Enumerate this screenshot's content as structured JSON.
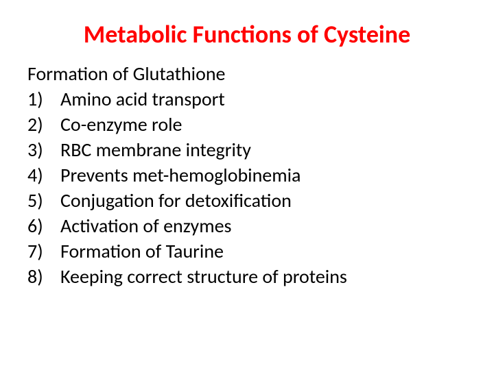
{
  "title": {
    "text": "Metabolic Functions of Cysteine",
    "color": "#ff0000",
    "fontsize": 36
  },
  "subtitle": {
    "text": "Formation of Glutathione",
    "color": "#000000",
    "fontsize": 28
  },
  "list": {
    "fontsize": 28,
    "color": "#000000",
    "items": [
      {
        "num": "1)",
        "text": "Amino acid transport"
      },
      {
        "num": "2)",
        "text": "Co-enzyme role"
      },
      {
        "num": "3)",
        "text": "RBC membrane integrity"
      },
      {
        "num": "4)",
        "text": "Prevents met-hemoglobinemia"
      },
      {
        "num": "5)",
        "text": "Conjugation for detoxification"
      },
      {
        "num": "6)",
        "text": "Activation of enzymes"
      },
      {
        "num": "7)",
        "text": "Formation of Taurine"
      },
      {
        "num": "8)",
        "text": "Keeping correct structure of proteins"
      }
    ]
  }
}
